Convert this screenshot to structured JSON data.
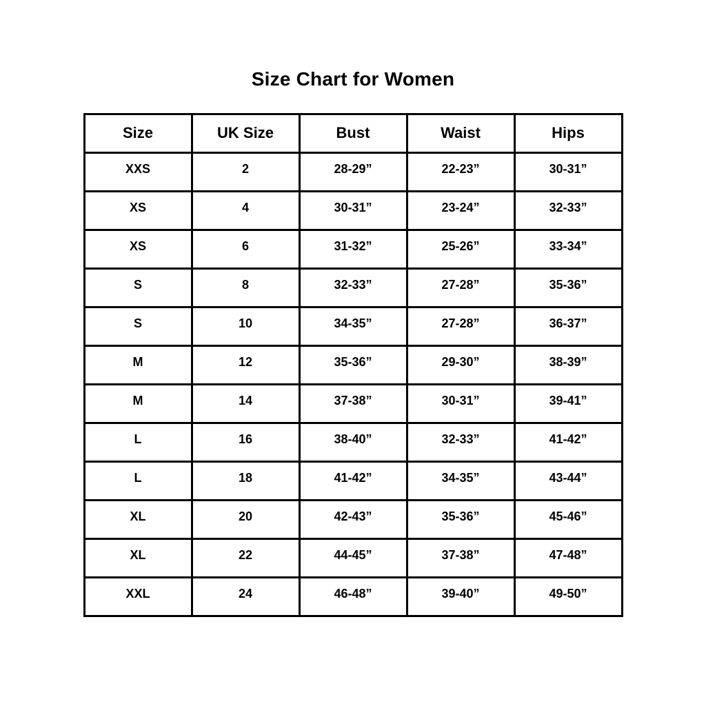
{
  "page": {
    "title": "Size Chart for Women"
  },
  "chart_data": {
    "type": "table",
    "title": "Size Chart for Women",
    "columns": [
      "Size",
      "UK Size",
      "Bust",
      "Waist",
      "Hips"
    ],
    "rows": [
      [
        "XXS",
        "2",
        "28-29”",
        "22-23”",
        "30-31”"
      ],
      [
        "XS",
        "4",
        "30-31”",
        "23-24”",
        "32-33”"
      ],
      [
        "XS",
        "6",
        "31-32”",
        "25-26”",
        "33-34”"
      ],
      [
        "S",
        "8",
        "32-33”",
        "27-28”",
        "35-36”"
      ],
      [
        "S",
        "10",
        "34-35”",
        "27-28”",
        "36-37”"
      ],
      [
        "M",
        "12",
        "35-36”",
        "29-30”",
        "38-39”"
      ],
      [
        "M",
        "14",
        "37-38”",
        "30-31”",
        "39-41”"
      ],
      [
        "L",
        "16",
        "38-40”",
        "32-33”",
        "41-42”"
      ],
      [
        "L",
        "18",
        "41-42”",
        "34-35”",
        "43-44”"
      ],
      [
        "XL",
        "20",
        "42-43”",
        "35-36”",
        "45-46”"
      ],
      [
        "XL",
        "22",
        "44-45”",
        "37-38”",
        "47-48”"
      ],
      [
        "XXL",
        "24",
        "46-48”",
        "39-40”",
        "49-50”"
      ]
    ],
    "layout": {
      "text_color": "#000000",
      "border_color": "#000000",
      "background": "#ffffff",
      "grid": true
    }
  }
}
